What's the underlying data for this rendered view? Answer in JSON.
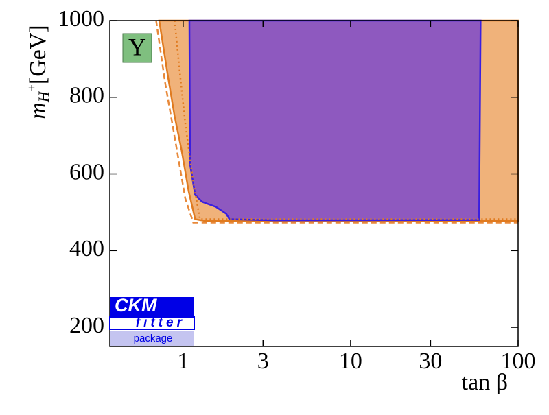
{
  "chart_data": {
    "type": "area",
    "xscale": "log",
    "xlim": [
      0.365,
      100
    ],
    "ylim": [
      150,
      1000
    ],
    "xticks": [
      1,
      3,
      10,
      30,
      100
    ],
    "yticks": [
      200,
      400,
      600,
      800,
      1000
    ],
    "xlabel": "tan β",
    "ylabel": {
      "base": "m",
      "sub": "H",
      "sup": "+",
      "unit": "[GeV]"
    },
    "annotation": "Y",
    "logo": {
      "top": "CKM",
      "middle": "fitter",
      "bottom": "package"
    },
    "series": [
      {
        "fill": "#f0b27a",
        "color": "#e07b20",
        "style": "solid",
        "x": [
          0.72,
          0.81,
          0.89,
          0.98,
          1.08,
          1.18,
          1.36,
          100,
          100
        ],
        "y": [
          1000,
          857,
          750,
          661,
          554,
          482,
          477,
          477,
          1000
        ]
      },
      {
        "fill": "#8e59bf",
        "color": "#3a1fe0",
        "style": "solid",
        "x": [
          1.09,
          1.1,
          1.18,
          1.3,
          1.57,
          1.81,
          1.89,
          3.49,
          58.5,
          59.7
        ],
        "y": [
          1000,
          625,
          545,
          527,
          514,
          496,
          482,
          479,
          480,
          1000
        ]
      },
      {
        "color": "#e8893a",
        "style": "dashed",
        "x": [
          0.69,
          0.78,
          0.89,
          1.03,
          1.15,
          100
        ],
        "y": [
          1000,
          839,
          696,
          536,
          473,
          473
        ]
      },
      {
        "color": "#e07b20",
        "style": "dotted",
        "x": [
          0.89,
          0.95,
          1.03,
          1.14,
          1.26,
          100
        ],
        "y": [
          1000,
          875,
          732,
          589,
          482,
          482
        ]
      }
    ]
  }
}
